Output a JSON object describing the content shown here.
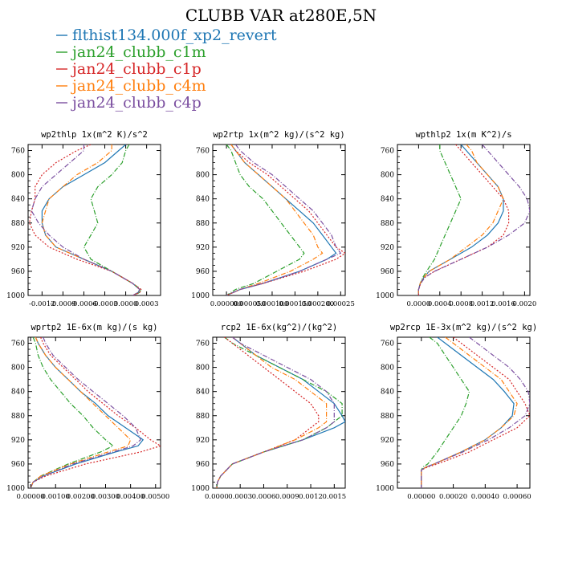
{
  "figure_title": "CLUBB VAR at280E,5N",
  "legend": [
    {
      "name": "flthist134.000f_xp2_revert",
      "color": "#1f77b4"
    },
    {
      "name": "jan24_clubb_c1m",
      "color": "#2ca02c"
    },
    {
      "name": "jan24_clubb_c1p",
      "color": "#d62728"
    },
    {
      "name": "jan24_clubb_c4m",
      "color": "#ff7f0e"
    },
    {
      "name": "jan24_clubb_c4p",
      "color": "#7b4fa0"
    }
  ],
  "chart_data": [
    {
      "type": "line",
      "title": "wp2thlp  1x(m^2 K)/s^2",
      "xlim": [
        -0.0014,
        0.0005
      ],
      "xticks": [
        -0.0012,
        -0.0009,
        -0.0006,
        -0.0003,
        0.0,
        0.0003
      ],
      "xtick_labels": [
        "-0.0012",
        "-0.0009",
        "-0.0006",
        "-0.0003",
        "0.0000",
        "0.0003"
      ],
      "ylim": [
        1000,
        750
      ],
      "yticks": [
        760,
        800,
        840,
        880,
        920,
        960,
        1000
      ],
      "y": [
        750,
        760,
        780,
        800,
        820,
        840,
        860,
        880,
        900,
        920,
        940,
        960,
        980,
        990,
        995,
        1000
      ],
      "series": [
        {
          "name": "flthist134.000f_xp2_revert",
          "x": [
            0.0,
            -0.0001,
            -0.0003,
            -0.0006,
            -0.0009,
            -0.0011,
            -0.0012,
            -0.0012,
            -0.00115,
            -0.001,
            -0.0006,
            -0.0002,
            0.0001,
            0.0002,
            0.00018,
            0.0001
          ]
        },
        {
          "name": "jan24_clubb_c1m",
          "x": [
            5e-05,
            0.0,
            -5e-05,
            -0.0002,
            -0.0004,
            -0.0005,
            -0.00045,
            -0.0004,
            -0.0005,
            -0.0006,
            -0.0005,
            -0.0002,
            0.0001,
            0.00022,
            0.0002,
            0.00012
          ]
        },
        {
          "name": "jan24_clubb_c1p",
          "x": [
            -0.0005,
            -0.0007,
            -0.001,
            -0.0012,
            -0.0013,
            -0.0013,
            -0.00135,
            -0.00138,
            -0.0013,
            -0.0011,
            -0.0007,
            -0.0002,
            0.0001,
            0.00022,
            0.0002,
            0.00012
          ]
        },
        {
          "name": "jan24_clubb_c4m",
          "x": [
            -0.0002,
            -0.0002,
            -0.0004,
            -0.0007,
            -0.0009,
            -0.0011,
            -0.00115,
            -0.0012,
            -0.00115,
            -0.001,
            -0.0006,
            -0.0002,
            0.0001,
            0.0002,
            0.00018,
            0.0001
          ]
        },
        {
          "name": "jan24_clubb_c4p",
          "x": [
            -0.0006,
            -0.0006,
            -0.0008,
            -0.001,
            -0.0012,
            -0.0013,
            -0.00135,
            -0.00125,
            -0.0011,
            -0.0009,
            -0.0006,
            -0.0002,
            0.0001,
            0.0002,
            0.00018,
            0.0001
          ]
        }
      ]
    },
    {
      "type": "line",
      "title": "wp2rtp  1x(m^2 kg)/(s^2 kg)",
      "xlim": [
        -3e-05,
        0.00026
      ],
      "xticks": [
        0.0,
        5e-05,
        0.0001,
        0.00015,
        0.0002,
        0.00025
      ],
      "xtick_labels": [
        "0.000000",
        "0.000050",
        "0.000100",
        "0.000150",
        "0.000200",
        "0.00025"
      ],
      "ylim": [
        1000,
        750
      ],
      "yticks": [
        760,
        800,
        840,
        880,
        920,
        960,
        1000
      ],
      "y": [
        750,
        760,
        780,
        800,
        820,
        840,
        860,
        880,
        900,
        920,
        930,
        940,
        960,
        980,
        990,
        1000
      ],
      "series": [
        {
          "name": "flthist134.000f_xp2_revert",
          "x": [
            1e-05,
            2e-05,
            4e-05,
            7e-05,
            0.0001,
            0.00013,
            0.00016,
            0.00019,
            0.00021,
            0.00023,
            0.00024,
            0.00022,
            0.00016,
            8e-05,
            3e-05,
            0.0
          ]
        },
        {
          "name": "jan24_clubb_c1m",
          "x": [
            0.0,
            1e-05,
            2e-05,
            3e-05,
            5e-05,
            8e-05,
            0.0001,
            0.00012,
            0.00014,
            0.00016,
            0.00017,
            0.00016,
            0.00011,
            6e-05,
            2e-05,
            0.0
          ]
        },
        {
          "name": "jan24_clubb_c1p",
          "x": [
            1e-05,
            2e-05,
            5e-05,
            9e-05,
            0.00012,
            0.00015,
            0.00018,
            0.0002,
            0.00022,
            0.00024,
            0.00026,
            0.00024,
            0.00017,
            8e-05,
            3e-05,
            0.0
          ]
        },
        {
          "name": "jan24_clubb_c4m",
          "x": [
            1e-05,
            2e-05,
            4e-05,
            7e-05,
            0.0001,
            0.00013,
            0.00015,
            0.00017,
            0.00019,
            0.0002,
            0.00021,
            0.00019,
            0.00014,
            7e-05,
            3e-05,
            0.0
          ]
        },
        {
          "name": "jan24_clubb_c4p",
          "x": [
            2e-05,
            3e-05,
            6e-05,
            0.0001,
            0.00013,
            0.00016,
            0.00019,
            0.00021,
            0.00023,
            0.00024,
            0.00025,
            0.00022,
            0.00016,
            8e-05,
            3e-05,
            0.0
          ]
        }
      ]
    },
    {
      "type": "line",
      "title": "wpthlp2  1x(m K^2)/s",
      "xlim": [
        -0.0004,
        0.0021
      ],
      "xticks": [
        0.0,
        0.0004,
        0.0008,
        0.0012,
        0.0016,
        0.002
      ],
      "xtick_labels": [
        "0.0000",
        "0.0004",
        "0.0008",
        "0.0012",
        "0.0016",
        "0.0020"
      ],
      "ylim": [
        1000,
        750
      ],
      "yticks": [
        760,
        800,
        840,
        880,
        920,
        960,
        1000
      ],
      "y": [
        750,
        760,
        780,
        800,
        820,
        840,
        860,
        880,
        900,
        920,
        940,
        960,
        970,
        980,
        990,
        1000
      ],
      "series": [
        {
          "name": "flthist134.000f_xp2_revert",
          "x": [
            0.0008,
            0.0009,
            0.0011,
            0.0013,
            0.0015,
            0.0016,
            0.0016,
            0.0015,
            0.0013,
            0.001,
            0.0006,
            0.0002,
            0.0001,
            3e-05,
            0.0,
            0.0
          ]
        },
        {
          "name": "jan24_clubb_c1m",
          "x": [
            0.0004,
            0.0004,
            0.0005,
            0.0006,
            0.0007,
            0.0008,
            0.0007,
            0.0006,
            0.0005,
            0.0004,
            0.0003,
            0.00015,
            8e-05,
            3e-05,
            0.0,
            0.0
          ]
        },
        {
          "name": "jan24_clubb_c1p",
          "x": [
            0.0007,
            0.0008,
            0.001,
            0.0012,
            0.0014,
            0.0016,
            0.0017,
            0.0017,
            0.0016,
            0.0013,
            0.0008,
            0.0003,
            0.00012,
            4e-05,
            0.0,
            0.0
          ]
        },
        {
          "name": "jan24_clubb_c4m",
          "x": [
            0.0009,
            0.001,
            0.0011,
            0.0013,
            0.0015,
            0.0016,
            0.0015,
            0.0014,
            0.0012,
            0.0009,
            0.0006,
            0.0002,
            0.0001,
            3e-05,
            0.0,
            0.0
          ]
        },
        {
          "name": "jan24_clubb_c4p",
          "x": [
            0.0012,
            0.0013,
            0.0015,
            0.0017,
            0.0019,
            0.00205,
            0.0021,
            0.002,
            0.0017,
            0.0013,
            0.0008,
            0.0003,
            0.00012,
            4e-05,
            0.0,
            0.0
          ]
        }
      ]
    },
    {
      "type": "line",
      "title": "wprtp2  1E-6x(m kg)/(s kg)",
      "xlim": [
        -0.0001,
        0.0052
      ],
      "xticks": [
        0.0,
        0.001,
        0.002,
        0.003,
        0.004,
        0.005
      ],
      "xtick_labels": [
        "0.00000",
        "0.00100",
        "0.00200",
        "0.00300",
        "0.00400",
        "0.00500"
      ],
      "ylim": [
        1000,
        750
      ],
      "yticks": [
        760,
        800,
        840,
        880,
        920,
        960,
        1000
      ],
      "y": [
        750,
        760,
        780,
        800,
        820,
        840,
        860,
        880,
        900,
        920,
        930,
        940,
        960,
        980,
        990,
        1000
      ],
      "series": [
        {
          "name": "flthist134.000f_xp2_revert",
          "x": [
            0.0002,
            0.0003,
            0.0006,
            0.001,
            0.0015,
            0.002,
            0.0026,
            0.0031,
            0.0038,
            0.0045,
            0.0043,
            0.0034,
            0.0018,
            0.0005,
            0.0001,
            0.0
          ]
        },
        {
          "name": "jan24_clubb_c1m",
          "x": [
            0.0001,
            0.0002,
            0.0003,
            0.0005,
            0.0008,
            0.0012,
            0.0016,
            0.0021,
            0.0025,
            0.003,
            0.0033,
            0.0028,
            0.0015,
            0.0004,
            0.0001,
            0.0
          ]
        },
        {
          "name": "jan24_clubb_c1p",
          "x": [
            0.0004,
            0.0005,
            0.0008,
            0.0013,
            0.0018,
            0.0023,
            0.0029,
            0.0035,
            0.0042,
            0.0048,
            0.0052,
            0.0044,
            0.0022,
            0.0006,
            0.0001,
            0.0
          ]
        },
        {
          "name": "jan24_clubb_c4m",
          "x": [
            0.0002,
            0.0003,
            0.0006,
            0.001,
            0.0015,
            0.002,
            0.0025,
            0.003,
            0.0035,
            0.004,
            0.0039,
            0.0031,
            0.0016,
            0.0004,
            0.0001,
            0.0
          ]
        },
        {
          "name": "jan24_clubb_c4p",
          "x": [
            0.0005,
            0.0006,
            0.0009,
            0.0014,
            0.0019,
            0.0025,
            0.0031,
            0.0037,
            0.0042,
            0.0044,
            0.0041,
            0.0033,
            0.0017,
            0.0005,
            0.0001,
            0.0
          ]
        }
      ]
    },
    {
      "type": "line",
      "title": "rcp2  1E-6x(kg^2)/(kg^2)",
      "xlim": [
        -5e-05,
        0.00164
      ],
      "xticks": [
        0.0,
        0.0003,
        0.0006,
        0.0009,
        0.0012,
        0.0015
      ],
      "xtick_labels": [
        "0.0000",
        "0.0003",
        "0.0006",
        "0.0009",
        "0.0012",
        "0.0015"
      ],
      "ylim": [
        1000,
        750
      ],
      "yticks": [
        760,
        800,
        840,
        880,
        920,
        960,
        1000
      ],
      "y": [
        750,
        760,
        780,
        800,
        820,
        840,
        860,
        880,
        890,
        900,
        920,
        940,
        960,
        980,
        990,
        1000
      ],
      "series": [
        {
          "name": "flthist134.000f_xp2_revert",
          "x": [
            0.0002,
            0.0003,
            0.0005,
            0.0008,
            0.0011,
            0.0013,
            0.0015,
            0.0016,
            0.00164,
            0.0015,
            0.0011,
            0.0006,
            0.0002,
            5e-05,
            1e-05,
            0.0
          ]
        },
        {
          "name": "jan24_clubb_c1m",
          "x": [
            0.0001,
            0.0002,
            0.0005,
            0.0008,
            0.0011,
            0.0014,
            0.0016,
            0.0016,
            0.0015,
            0.0014,
            0.0011,
            0.0006,
            0.0002,
            5e-05,
            1e-05,
            0.0
          ]
        },
        {
          "name": "jan24_clubb_c1p",
          "x": [
            0.0001,
            0.0002,
            0.0004,
            0.0006,
            0.0008,
            0.001,
            0.0012,
            0.0013,
            0.0013,
            0.0012,
            0.001,
            0.0006,
            0.0002,
            5e-05,
            1e-05,
            0.0
          ]
        },
        {
          "name": "jan24_clubb_c4m",
          "x": [
            0.0002,
            0.0003,
            0.0005,
            0.0007,
            0.001,
            0.0012,
            0.0014,
            0.0014,
            0.0014,
            0.0013,
            0.001,
            0.0006,
            0.0002,
            5e-05,
            1e-05,
            0.0
          ]
        },
        {
          "name": "jan24_clubb_c4p",
          "x": [
            0.0002,
            0.0003,
            0.0006,
            0.0009,
            0.0012,
            0.0014,
            0.0015,
            0.0015,
            0.0015,
            0.0014,
            0.0011,
            0.0006,
            0.0002,
            5e-05,
            1e-05,
            0.0
          ]
        }
      ]
    },
    {
      "type": "line",
      "title": "wp2rcp  1E-3x(m^2 kg)/(s^2 kg)",
      "xlim": [
        -0.00015,
        0.00068
      ],
      "xticks": [
        0.0,
        0.0002,
        0.0004,
        0.0006
      ],
      "xtick_labels": [
        "0.00000",
        "0.00020",
        "0.00040",
        "0.00060"
      ],
      "ylim": [
        1000,
        750
      ],
      "yticks": [
        760,
        800,
        840,
        880,
        920,
        960,
        1000
      ],
      "y": [
        750,
        760,
        780,
        800,
        820,
        840,
        860,
        880,
        900,
        920,
        940,
        960,
        965,
        970,
        980,
        1000
      ],
      "series": [
        {
          "name": "flthist134.000f_xp2_revert",
          "x": [
            0.0001,
            0.00015,
            0.00025,
            0.00035,
            0.00045,
            0.00052,
            0.00058,
            0.00057,
            0.0005,
            0.0004,
            0.00025,
            8e-05,
            3e-05,
            0.0,
            0.0,
            0.0
          ]
        },
        {
          "name": "jan24_clubb_c1m",
          "x": [
            5e-05,
            0.0001,
            0.00015,
            0.0002,
            0.00025,
            0.0003,
            0.00028,
            0.00025,
            0.0002,
            0.00015,
            0.0001,
            4e-05,
            1e-05,
            0.0,
            0.0,
            0.0
          ]
        },
        {
          "name": "jan24_clubb_c1p",
          "x": [
            0.0002,
            0.00025,
            0.00035,
            0.00045,
            0.00055,
            0.0006,
            0.00065,
            0.00068,
            0.0006,
            0.00045,
            0.0003,
            0.0001,
            4e-05,
            0.0,
            0.0,
            0.0
          ]
        },
        {
          "name": "jan24_clubb_c4m",
          "x": [
            0.00015,
            0.0002,
            0.0003,
            0.0004,
            0.0005,
            0.00055,
            0.0006,
            0.00058,
            0.0005,
            0.0004,
            0.00025,
            8e-05,
            3e-05,
            0.0,
            0.0,
            0.0
          ]
        },
        {
          "name": "jan24_clubb_c4p",
          "x": [
            0.0003,
            0.00035,
            0.00045,
            0.00055,
            0.00062,
            0.00067,
            0.00068,
            0.00065,
            0.00055,
            0.00042,
            0.00026,
            8e-05,
            3e-05,
            0.0,
            0.0,
            0.0
          ]
        }
      ]
    }
  ]
}
